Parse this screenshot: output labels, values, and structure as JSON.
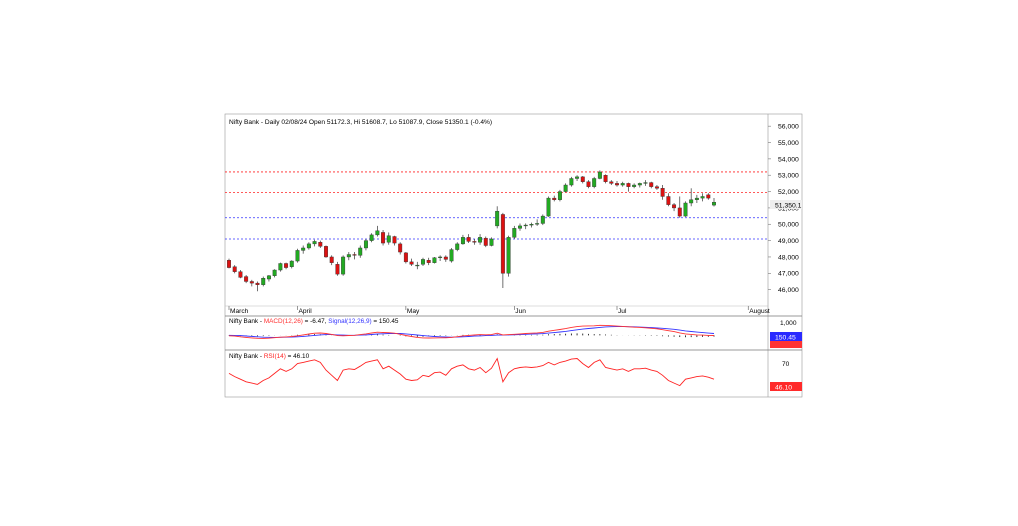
{
  "colors": {
    "up": "#22aa22",
    "down": "#dd1111",
    "macd": "#ff3333",
    "signal": "#3333ff",
    "rsi": "#ff2222",
    "support": "#3333ff",
    "resistance": "#ff2222",
    "price_label_bg": "#eeeeee",
    "macd_label_bg": "#2a2aff",
    "rsi_label_bg": "#ff2a2a"
  },
  "chart_data": [
    {
      "type": "candlestick",
      "title": "Nifty Bank - Daily 02/08/24 Open 51172.3, Hi 51608.7, Lo 51087.9, Close 51350.1 (-0.4%)",
      "ylim": [
        45000,
        56500
      ],
      "y_ticks": [
        46000,
        47000,
        48000,
        49000,
        50000,
        51000,
        52000,
        53000,
        54000,
        55000,
        56000
      ],
      "y_tick_labels": [
        "46,000",
        "47,000",
        "48,000",
        "49,000",
        "50,000",
        "51,000",
        "52,000",
        "53,000",
        "54,000",
        "55,000",
        "56,000"
      ],
      "x_labels": [
        {
          "label": "March",
          "index": 0
        },
        {
          "label": "April",
          "index": 12
        },
        {
          "label": "May",
          "index": 31
        },
        {
          "label": "Jun",
          "index": 50
        },
        {
          "label": "Jul",
          "index": 68
        },
        {
          "label": "August",
          "index": 91
        }
      ],
      "horizontal_levels": [
        {
          "value": 53200,
          "style": "resistance"
        },
        {
          "value": 51950,
          "style": "resistance"
        },
        {
          "value": 50400,
          "style": "support"
        },
        {
          "value": 49100,
          "style": "support"
        }
      ],
      "last_price_label": "51,350.1",
      "last_price": 51350,
      "candles": [
        {
          "o": 47800,
          "h": 47900,
          "l": 47300,
          "c": 47350
        },
        {
          "o": 47400,
          "h": 47500,
          "l": 47000,
          "c": 47100
        },
        {
          "o": 47100,
          "h": 47200,
          "l": 46700,
          "c": 46750
        },
        {
          "o": 46800,
          "h": 46900,
          "l": 46400,
          "c": 46500
        },
        {
          "o": 46500,
          "h": 46600,
          "l": 46200,
          "c": 46400
        },
        {
          "o": 46400,
          "h": 46500,
          "l": 45900,
          "c": 46300
        },
        {
          "o": 46300,
          "h": 46800,
          "l": 46200,
          "c": 46700
        },
        {
          "o": 46650,
          "h": 46900,
          "l": 46500,
          "c": 46850
        },
        {
          "o": 46850,
          "h": 47250,
          "l": 46750,
          "c": 47200
        },
        {
          "o": 47200,
          "h": 47650,
          "l": 47100,
          "c": 47600
        },
        {
          "o": 47600,
          "h": 47650,
          "l": 47250,
          "c": 47350
        },
        {
          "o": 47400,
          "h": 47800,
          "l": 47300,
          "c": 47750
        },
        {
          "o": 47750,
          "h": 48500,
          "l": 47650,
          "c": 48400
        },
        {
          "o": 48400,
          "h": 48700,
          "l": 48200,
          "c": 48550
        },
        {
          "o": 48550,
          "h": 48900,
          "l": 48450,
          "c": 48800
        },
        {
          "o": 48800,
          "h": 49050,
          "l": 48650,
          "c": 48950
        },
        {
          "o": 48900,
          "h": 49000,
          "l": 48550,
          "c": 48650
        },
        {
          "o": 48650,
          "h": 48700,
          "l": 47950,
          "c": 48000
        },
        {
          "o": 48000,
          "h": 48100,
          "l": 47500,
          "c": 47650
        },
        {
          "o": 47550,
          "h": 47700,
          "l": 46850,
          "c": 46950
        },
        {
          "o": 46950,
          "h": 48100,
          "l": 46850,
          "c": 48000
        },
        {
          "o": 48000,
          "h": 48300,
          "l": 47800,
          "c": 48150
        },
        {
          "o": 48150,
          "h": 48300,
          "l": 47850,
          "c": 48100
        },
        {
          "o": 48100,
          "h": 48700,
          "l": 47950,
          "c": 48550
        },
        {
          "o": 48550,
          "h": 49100,
          "l": 48400,
          "c": 49000
        },
        {
          "o": 49000,
          "h": 49450,
          "l": 48900,
          "c": 49350
        },
        {
          "o": 49350,
          "h": 49900,
          "l": 49250,
          "c": 49600
        },
        {
          "o": 49500,
          "h": 49650,
          "l": 48700,
          "c": 48850
        },
        {
          "o": 48900,
          "h": 49500,
          "l": 48750,
          "c": 49300
        },
        {
          "o": 49250,
          "h": 49300,
          "l": 48700,
          "c": 48850
        },
        {
          "o": 48800,
          "h": 48900,
          "l": 48150,
          "c": 48300
        },
        {
          "o": 48250,
          "h": 48300,
          "l": 47600,
          "c": 47700
        },
        {
          "o": 47700,
          "h": 47900,
          "l": 47450,
          "c": 47550
        },
        {
          "o": 47500,
          "h": 47700,
          "l": 47250,
          "c": 47500
        },
        {
          "o": 47550,
          "h": 47950,
          "l": 47450,
          "c": 47850
        },
        {
          "o": 47800,
          "h": 47950,
          "l": 47500,
          "c": 47650
        },
        {
          "o": 47650,
          "h": 48000,
          "l": 47600,
          "c": 47950
        },
        {
          "o": 47950,
          "h": 48100,
          "l": 47750,
          "c": 48000
        },
        {
          "o": 48000,
          "h": 48100,
          "l": 47700,
          "c": 47850
        },
        {
          "o": 47750,
          "h": 48550,
          "l": 47650,
          "c": 48450
        },
        {
          "o": 48450,
          "h": 48900,
          "l": 48350,
          "c": 48800
        },
        {
          "o": 48800,
          "h": 49350,
          "l": 48750,
          "c": 49200
        },
        {
          "o": 49200,
          "h": 49400,
          "l": 48850,
          "c": 48950
        },
        {
          "o": 48950,
          "h": 49100,
          "l": 48750,
          "c": 48900
        },
        {
          "o": 48900,
          "h": 49400,
          "l": 48750,
          "c": 49200
        },
        {
          "o": 49150,
          "h": 49250,
          "l": 48600,
          "c": 48700
        },
        {
          "o": 48700,
          "h": 49200,
          "l": 48650,
          "c": 49100
        },
        {
          "o": 49900,
          "h": 51100,
          "l": 49750,
          "c": 50800
        },
        {
          "o": 50600,
          "h": 50700,
          "l": 46100,
          "c": 47000
        },
        {
          "o": 47000,
          "h": 49300,
          "l": 46800,
          "c": 49200
        },
        {
          "o": 49200,
          "h": 49900,
          "l": 49100,
          "c": 49750
        },
        {
          "o": 49750,
          "h": 50050,
          "l": 49600,
          "c": 49900
        },
        {
          "o": 49900,
          "h": 50050,
          "l": 49700,
          "c": 49950
        },
        {
          "o": 49950,
          "h": 50100,
          "l": 49800,
          "c": 50000
        },
        {
          "o": 50000,
          "h": 50300,
          "l": 49900,
          "c": 50050
        },
        {
          "o": 50050,
          "h": 50600,
          "l": 49950,
          "c": 50500
        },
        {
          "o": 50500,
          "h": 51700,
          "l": 50450,
          "c": 51600
        },
        {
          "o": 51600,
          "h": 51750,
          "l": 51400,
          "c": 51500
        },
        {
          "o": 51500,
          "h": 52100,
          "l": 51400,
          "c": 52000
        },
        {
          "o": 52000,
          "h": 52500,
          "l": 51950,
          "c": 52400
        },
        {
          "o": 52400,
          "h": 52900,
          "l": 52300,
          "c": 52800
        },
        {
          "o": 52800,
          "h": 53000,
          "l": 52650,
          "c": 52900
        },
        {
          "o": 52900,
          "h": 52950,
          "l": 52500,
          "c": 52600
        },
        {
          "o": 52600,
          "h": 52700,
          "l": 52200,
          "c": 52300
        },
        {
          "o": 52300,
          "h": 52900,
          "l": 52200,
          "c": 52800
        },
        {
          "o": 52800,
          "h": 53300,
          "l": 52750,
          "c": 53200
        },
        {
          "o": 53000,
          "h": 53050,
          "l": 52500,
          "c": 52600
        },
        {
          "o": 52600,
          "h": 52700,
          "l": 52400,
          "c": 52500
        },
        {
          "o": 52500,
          "h": 52650,
          "l": 52300,
          "c": 52400
        },
        {
          "o": 52400,
          "h": 52600,
          "l": 52300,
          "c": 52500
        },
        {
          "o": 52500,
          "h": 52550,
          "l": 52000,
          "c": 52300
        },
        {
          "o": 52300,
          "h": 52500,
          "l": 52200,
          "c": 52400
        },
        {
          "o": 52400,
          "h": 52550,
          "l": 52250,
          "c": 52500
        },
        {
          "o": 52500,
          "h": 52700,
          "l": 52350,
          "c": 52550
        },
        {
          "o": 52550,
          "h": 52600,
          "l": 52200,
          "c": 52300
        },
        {
          "o": 52300,
          "h": 52400,
          "l": 52100,
          "c": 52200
        },
        {
          "o": 52200,
          "h": 52400,
          "l": 51500,
          "c": 51700
        },
        {
          "o": 51700,
          "h": 51900,
          "l": 51100,
          "c": 51200
        },
        {
          "o": 51200,
          "h": 51300,
          "l": 50800,
          "c": 51000
        },
        {
          "o": 51000,
          "h": 51700,
          "l": 50400,
          "c": 50500
        },
        {
          "o": 50500,
          "h": 51400,
          "l": 50450,
          "c": 51300
        },
        {
          "o": 51300,
          "h": 52200,
          "l": 51100,
          "c": 51500
        },
        {
          "o": 51500,
          "h": 51800,
          "l": 51300,
          "c": 51600
        },
        {
          "o": 51600,
          "h": 51900,
          "l": 51400,
          "c": 51700
        },
        {
          "o": 51800,
          "h": 51900,
          "l": 51500,
          "c": 51600
        },
        {
          "o": 51172,
          "h": 51609,
          "l": 51088,
          "c": 51350
        }
      ]
    },
    {
      "type": "line",
      "title": "Nifty Bank - MACD(12,26) = -6.47, Signal(12,26,9) = 150.45",
      "ylim": [
        -1000,
        1300
      ],
      "y_ticks": [
        1000
      ],
      "y_tick_labels": [
        "1,000"
      ],
      "last_value_label": "150.45",
      "series": [
        {
          "name": "MACD(12,26)",
          "values": [
            -30,
            -60,
            -110,
            -160,
            -200,
            -230,
            -240,
            -220,
            -180,
            -140,
            -120,
            -90,
            -30,
            40,
            110,
            170,
            190,
            150,
            80,
            -20,
            -30,
            -10,
            10,
            60,
            120,
            190,
            250,
            230,
            210,
            170,
            90,
            -10,
            -90,
            -160,
            -200,
            -210,
            -200,
            -190,
            -190,
            -160,
            -100,
            -40,
            0,
            30,
            60,
            50,
            60,
            170,
            40,
            60,
            90,
            120,
            150,
            170,
            200,
            240,
            330,
            400,
            470,
            540,
            630,
            700,
            740,
            750,
            760,
            800,
            790,
            770,
            740,
            710,
            680,
            650,
            630,
            600,
            560,
            520,
            450,
            370,
            300,
            200,
            120,
            80,
            40,
            20,
            0,
            -7
          ]
        },
        {
          "name": "Signal(12,26,9)",
          "values": [
            10,
            0,
            -20,
            -50,
            -80,
            -110,
            -140,
            -150,
            -160,
            -150,
            -145,
            -135,
            -110,
            -80,
            -40,
            0,
            40,
            60,
            60,
            40,
            20,
            10,
            10,
            20,
            40,
            70,
            110,
            130,
            150,
            160,
            150,
            120,
            80,
            30,
            -20,
            -60,
            -90,
            -110,
            -130,
            -140,
            -130,
            -110,
            -90,
            -60,
            -40,
            -20,
            0,
            20,
            25,
            35,
            50,
            65,
            85,
            100,
            120,
            145,
            180,
            225,
            270,
            320,
            380,
            440,
            500,
            550,
            590,
            630,
            670,
            690,
            700,
            700,
            690,
            680,
            660,
            640,
            620,
            590,
            560,
            520,
            480,
            420,
            360,
            310,
            260,
            220,
            180,
            150
          ]
        }
      ]
    },
    {
      "type": "line",
      "title": "Nifty Bank - RSI(14) = 46.10",
      "ylim": [
        20,
        88
      ],
      "y_ticks": [
        70
      ],
      "y_tick_labels": [
        "70"
      ],
      "last_value_label": "46.10",
      "series": [
        {
          "name": "RSI(14)",
          "values": [
            55,
            50,
            46,
            42,
            40,
            38,
            44,
            48,
            55,
            62,
            58,
            62,
            70,
            72,
            74,
            76,
            72,
            60,
            52,
            44,
            60,
            62,
            61,
            66,
            72,
            74,
            76,
            62,
            66,
            60,
            54,
            46,
            44,
            45,
            52,
            50,
            56,
            57,
            52,
            62,
            66,
            68,
            62,
            60,
            64,
            56,
            63,
            78,
            42,
            56,
            62,
            64,
            65,
            64,
            65,
            67,
            72,
            68,
            72,
            74,
            77,
            78,
            70,
            64,
            72,
            76,
            64,
            62,
            60,
            62,
            58,
            62,
            62,
            63,
            60,
            58,
            52,
            44,
            40,
            36,
            46,
            48,
            50,
            51,
            49,
            46
          ]
        }
      ]
    }
  ]
}
